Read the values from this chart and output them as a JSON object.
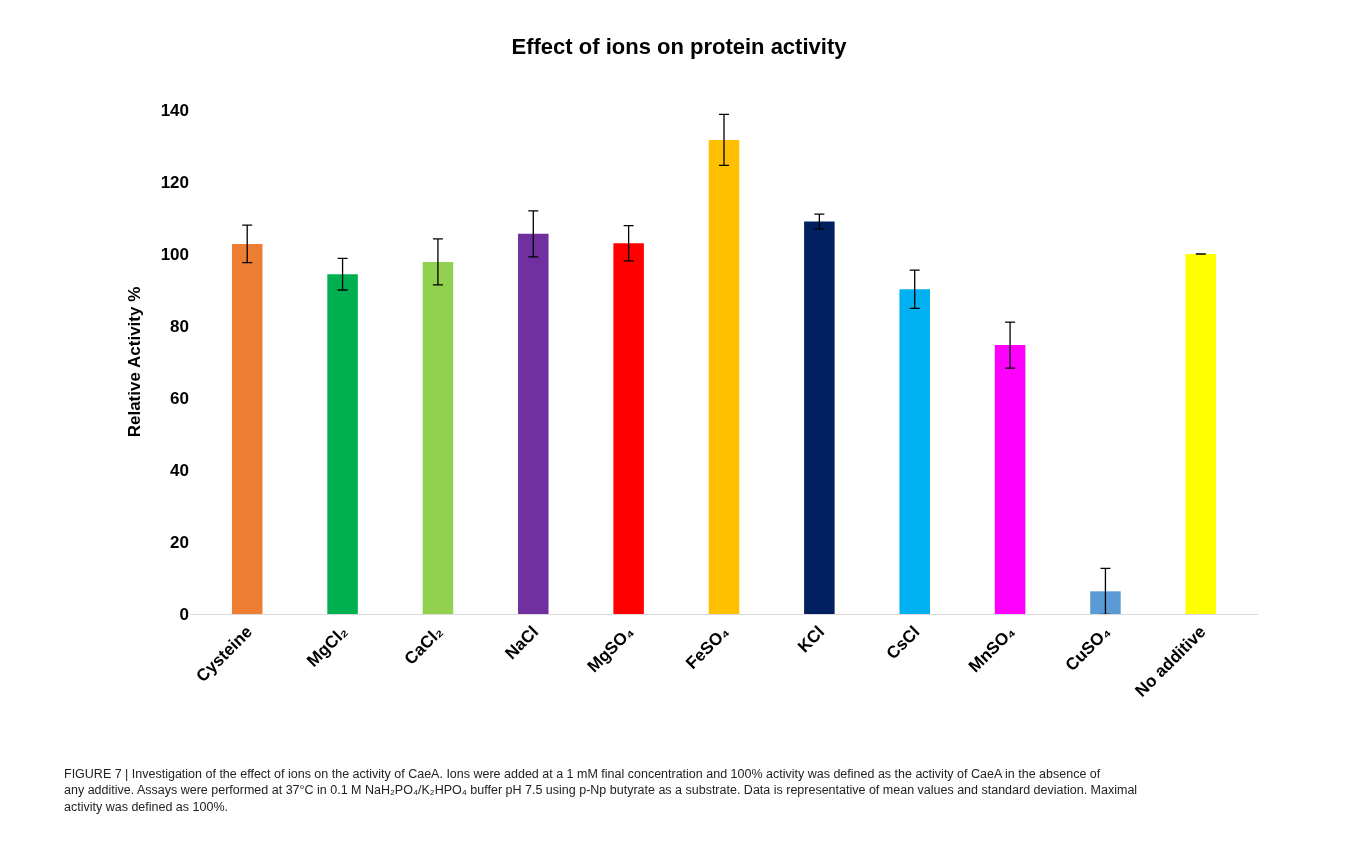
{
  "chart_data": {
    "type": "bar",
    "title": "Effect of ions on protein activity",
    "ylabel": "Relative Activity %",
    "categories": [
      "Cysteine",
      "MgCl₂",
      "CaCl₂",
      "NaCl",
      "MgSO₄",
      "FeSO₄",
      "KCl",
      "CsCl",
      "MnSO₄",
      "CuSO₄",
      "No additive"
    ],
    "values": [
      102.8,
      94.4,
      97.8,
      105.6,
      103,
      131.7,
      109,
      90.2,
      74.7,
      6.3,
      100
    ],
    "errors": [
      5.2,
      4.4,
      6.4,
      6.4,
      4.9,
      7.1,
      2.1,
      5.3,
      6.4,
      6.4,
      0
    ],
    "colors": [
      "#ed7d31",
      "#00b050",
      "#92d050",
      "#7030a0",
      "#ff0000",
      "#ffc000",
      "#002060",
      "#00b0f0",
      "#ff00ff",
      "#5b9bd5",
      "#ffff00"
    ],
    "ylim": [
      0,
      140
    ],
    "yticks": [
      0,
      20,
      40,
      60,
      80,
      100,
      120,
      140
    ],
    "legend": false,
    "annotations": [
      "FIGURE 7 | Investigation of the effect of ions on the activity of CaeA. Ions were added at a 1 mM final concentration and 100% activity was defined as the activity of CaeA in the absence of any additive. Assays were performed at 37°C in 0.1 M NaH₂PO₄/K₂HPO₄ buffer pH 7.5 using p-Np butyrate as a substrate. Data is representative of mean values and standard deviation. Maximal activity was defined as 100%."
    ]
  }
}
